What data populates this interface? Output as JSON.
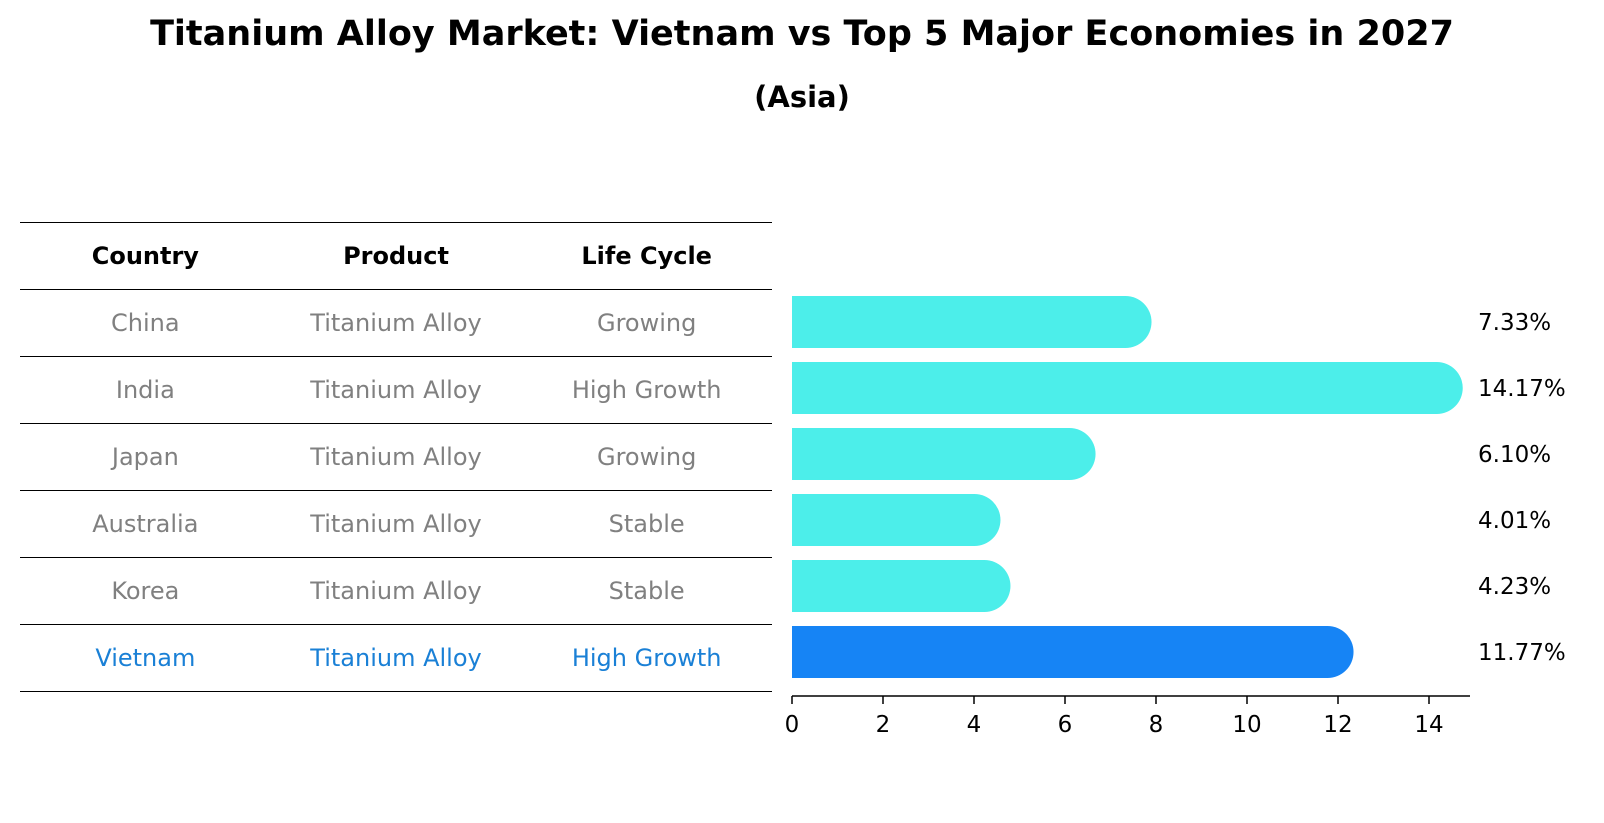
{
  "colors": {
    "bar": "#4ceeea",
    "highlight_bar": "#1684f5",
    "highlight_text": "#1a80d6",
    "muted_text": "#808080"
  },
  "chart_data": {
    "type": "bar",
    "orientation": "horizontal",
    "title": "Titanium Alloy Market: Vietnam vs Top 5 Major Economies in 2027",
    "subtitle": "(Asia)",
    "categories": [
      "China",
      "India",
      "Japan",
      "Australia",
      "Korea",
      "Vietnam"
    ],
    "values": [
      7.33,
      14.17,
      6.1,
      4.01,
      4.23,
      11.77
    ],
    "value_labels": [
      "7.33%",
      "14.17%",
      "6.10%",
      "4.01%",
      "4.23%",
      "11.77%"
    ],
    "highlight": "Vietnam",
    "xlim": [
      0,
      15
    ],
    "xticks": [
      0,
      2,
      4,
      6,
      8,
      10,
      12,
      14
    ],
    "xlabel": "",
    "ylabel": ""
  },
  "table": {
    "headers": [
      "Country",
      "Product",
      "Life Cycle"
    ],
    "rows": [
      [
        "China",
        "Titanium Alloy",
        "Growing"
      ],
      [
        "India",
        "Titanium Alloy",
        "High Growth"
      ],
      [
        "Japan",
        "Titanium Alloy",
        "Growing"
      ],
      [
        "Australia",
        "Titanium Alloy",
        "Stable"
      ],
      [
        "Korea",
        "Titanium Alloy",
        "Stable"
      ],
      [
        "Vietnam",
        "Titanium Alloy",
        "High Growth"
      ]
    ]
  }
}
